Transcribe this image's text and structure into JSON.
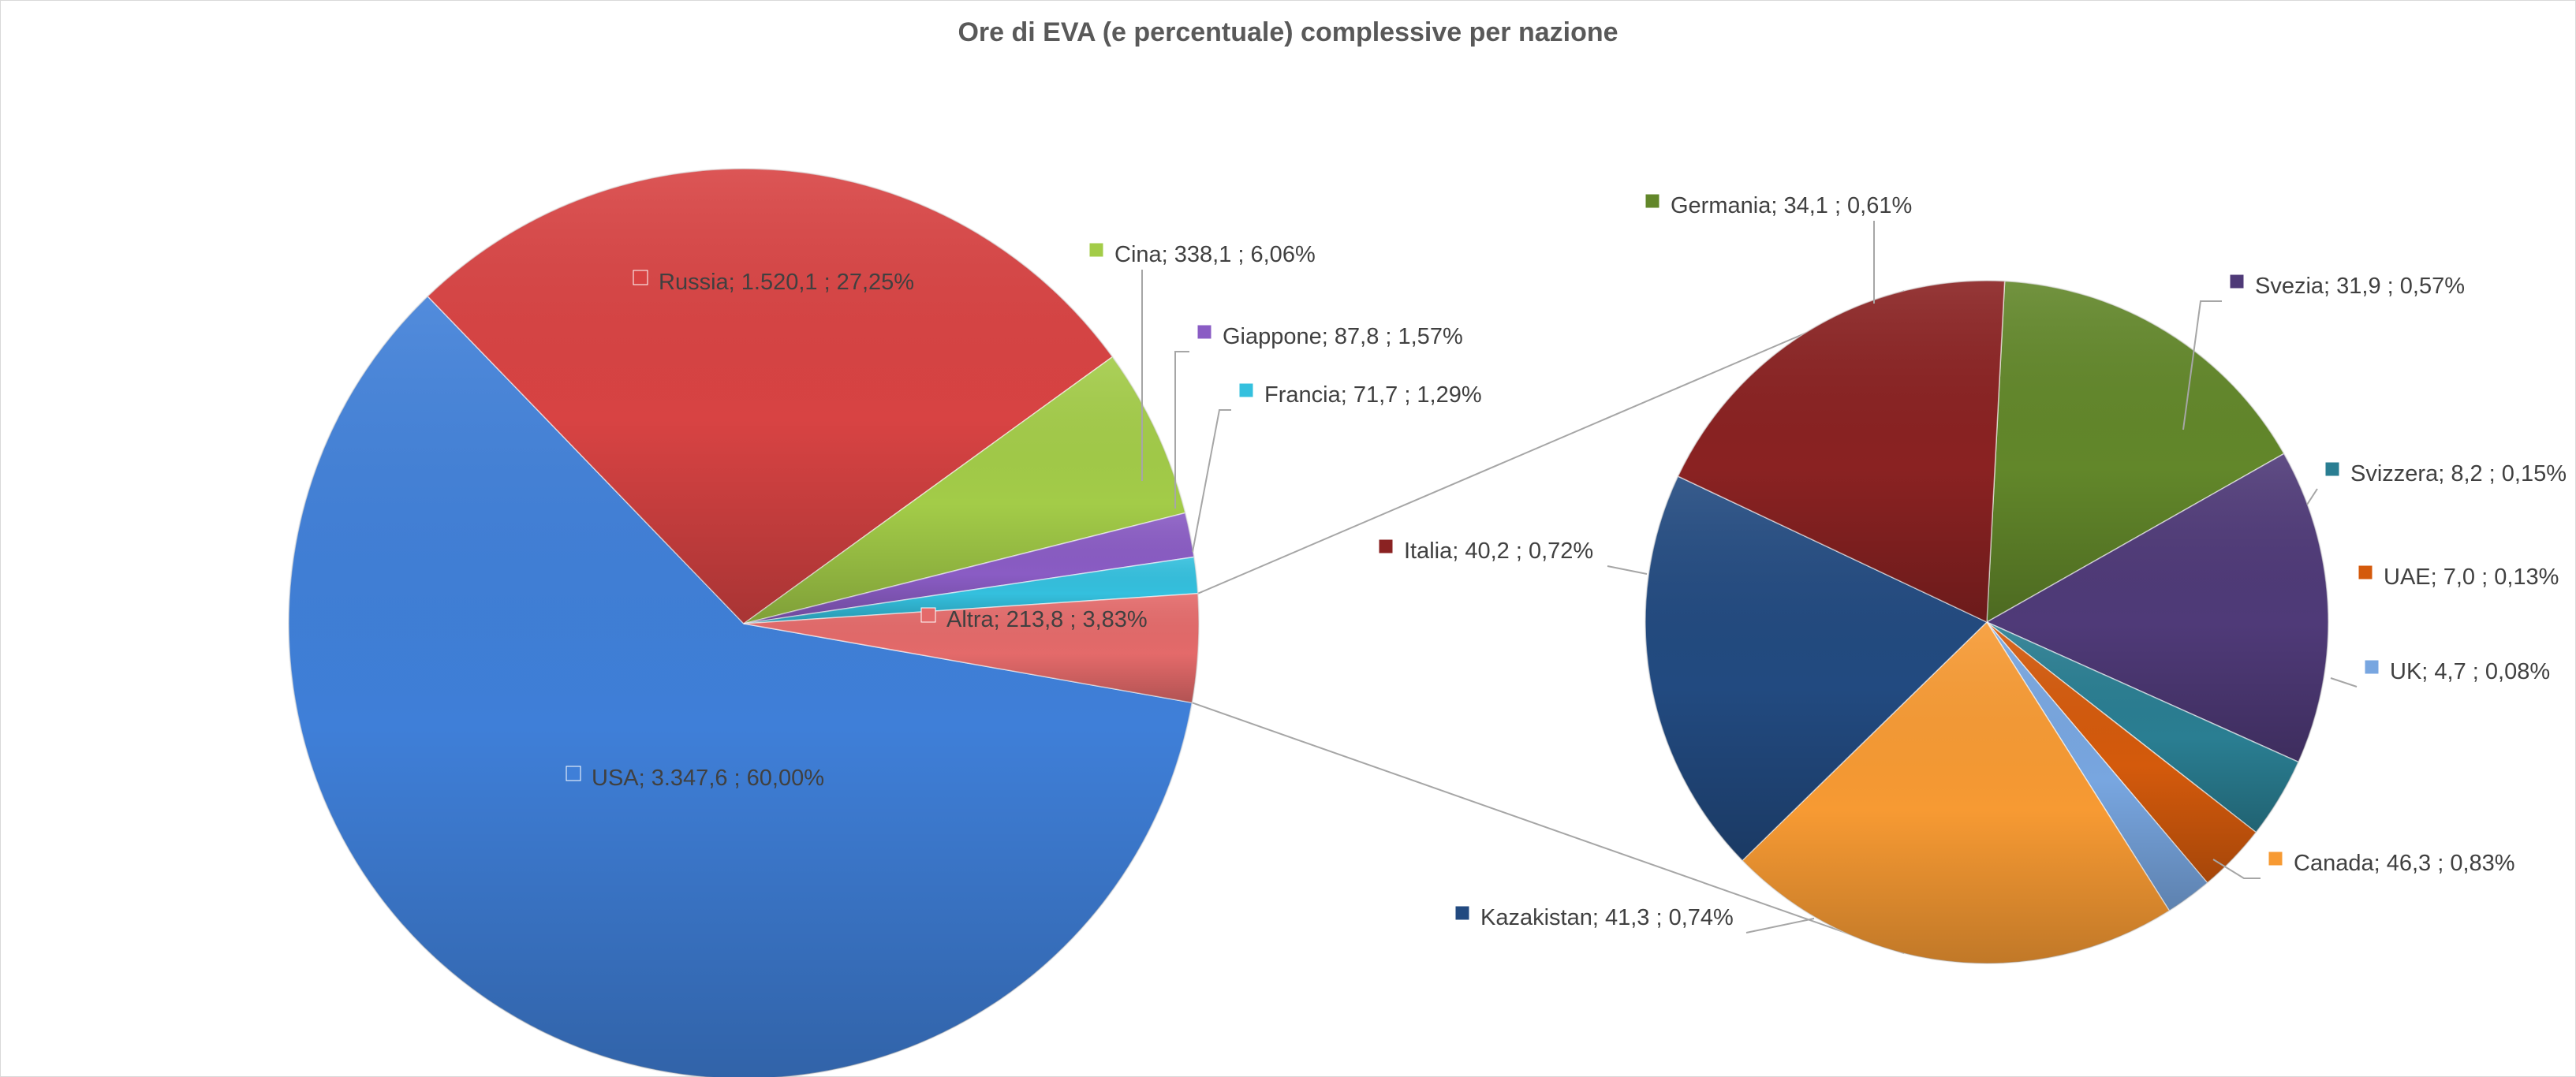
{
  "chart_data": {
    "type": "pie",
    "subtype": "pie-of-pie",
    "title": "Ore di EVA (e percentuale) complessive per nazione",
    "main_pie": [
      {
        "name": "USA",
        "value": 3347.6,
        "percent": 60.0,
        "value_label": "3.347,6",
        "percent_label": "60,00%",
        "color": "#3f7fd8"
      },
      {
        "name": "Russia",
        "value": 1520.1,
        "percent": 27.25,
        "value_label": "1.520,1",
        "percent_label": "27,25%",
        "color": "#d84343"
      },
      {
        "name": "Cina",
        "value": 338.1,
        "percent": 6.06,
        "value_label": "338,1",
        "percent_label": "6,06%",
        "color": "#a3cc48"
      },
      {
        "name": "Giappone",
        "value": 87.8,
        "percent": 1.57,
        "value_label": "87,8",
        "percent_label": "1,57%",
        "color": "#8a5cc4"
      },
      {
        "name": "Francia",
        "value": 71.7,
        "percent": 1.29,
        "value_label": "71,7",
        "percent_label": "1,29%",
        "color": "#34c0de"
      },
      {
        "name": "Altra",
        "value": 213.8,
        "percent": 3.83,
        "value_label": "213,8",
        "percent_label": "3,83%",
        "color": "#e46a6a"
      }
    ],
    "secondary_pie": [
      {
        "name": "Germania",
        "value": 34.1,
        "percent": 0.61,
        "value_label": "34,1",
        "percent_label": "0,61%",
        "color": "#62872a"
      },
      {
        "name": "Svezia",
        "value": 31.9,
        "percent": 0.57,
        "value_label": "31,9",
        "percent_label": "0,57%",
        "color": "#4f3a78"
      },
      {
        "name": "Svizzera",
        "value": 8.2,
        "percent": 0.15,
        "value_label": "8,2",
        "percent_label": "0,15%",
        "color": "#2a7e92"
      },
      {
        "name": "UAE",
        "value": 7.0,
        "percent": 0.13,
        "value_label": "7,0",
        "percent_label": "0,13%",
        "color": "#d45a0c"
      },
      {
        "name": "UK",
        "value": 4.7,
        "percent": 0.08,
        "value_label": "4,7",
        "percent_label": "0,08%",
        "color": "#78a6e0"
      },
      {
        "name": "Canada",
        "value": 46.3,
        "percent": 0.83,
        "value_label": "46,3",
        "percent_label": "0,83%",
        "color": "#f79a33"
      },
      {
        "name": "Kazakistan",
        "value": 41.3,
        "percent": 0.74,
        "value_label": "41,3",
        "percent_label": "0,74%",
        "color": "#224a80"
      },
      {
        "name": "Italia",
        "value": 40.2,
        "percent": 0.72,
        "value_label": "40,2",
        "percent_label": "0,72%",
        "color": "#8a2222"
      }
    ],
    "legend": "none",
    "data_labels": "category; value ; percent"
  }
}
